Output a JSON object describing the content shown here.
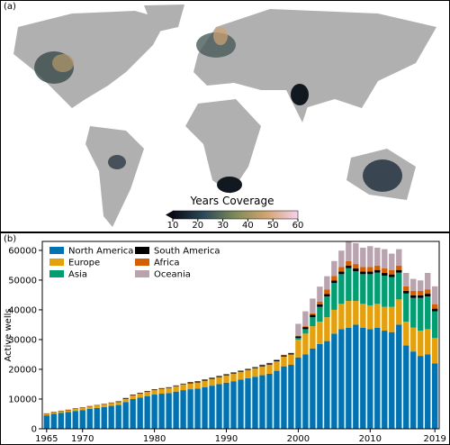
{
  "map": {
    "label": "(a)",
    "colorbar": {
      "title": "Years Coverage",
      "lim": [
        10,
        60
      ],
      "ticks": [
        10,
        20,
        30,
        40,
        50,
        60
      ]
    }
  },
  "chart_data": {
    "type": "stacked-bar",
    "panel_label": "(b)",
    "y_label": "Active wells",
    "x": [
      1965,
      1966,
      1967,
      1968,
      1969,
      1970,
      1971,
      1972,
      1973,
      1974,
      1975,
      1976,
      1977,
      1978,
      1979,
      1980,
      1981,
      1982,
      1983,
      1984,
      1985,
      1986,
      1987,
      1988,
      1989,
      1990,
      1991,
      1992,
      1993,
      1994,
      1995,
      1996,
      1997,
      1998,
      1999,
      2000,
      2001,
      2002,
      2003,
      2004,
      2005,
      2006,
      2007,
      2008,
      2009,
      2010,
      2011,
      2012,
      2013,
      2014,
      2015,
      2016,
      2017,
      2018,
      2019
    ],
    "xlim": [
      1964.4,
      2019.6
    ],
    "xticks": [
      1965,
      1970,
      1980,
      1990,
      2000,
      2010,
      2019
    ],
    "ylim": [
      0,
      63000
    ],
    "yticks": [
      0,
      10000,
      20000,
      30000,
      40000,
      50000,
      60000
    ],
    "legend": "upper-left",
    "series": [
      {
        "name": "North America",
        "color": "#0173b2",
        "values": [
          4500,
          5000,
          5300,
          5600,
          6000,
          6300,
          6700,
          7000,
          7300,
          7700,
          8000,
          9000,
          10000,
          10500,
          11000,
          11500,
          11800,
          12000,
          12500,
          13000,
          13300,
          13500,
          14000,
          14500,
          15000,
          15500,
          16000,
          16500,
          17000,
          17500,
          18000,
          18500,
          19500,
          21000,
          21500,
          24000,
          25000,
          27000,
          28500,
          29500,
          32000,
          33500,
          34000,
          35000,
          34000,
          33500,
          34000,
          33000,
          32500,
          35000,
          28000,
          26000,
          24500,
          25000,
          22000
        ]
      },
      {
        "name": "Europe",
        "color": "#e5a00d",
        "values": [
          500,
          550,
          600,
          650,
          700,
          750,
          800,
          850,
          900,
          950,
          1000,
          1100,
          1200,
          1300,
          1400,
          1500,
          1600,
          1700,
          1800,
          1900,
          2000,
          2100,
          2200,
          2300,
          2400,
          2500,
          2600,
          2700,
          2800,
          2900,
          3000,
          3100,
          3200,
          3300,
          3500,
          6000,
          7000,
          7500,
          7500,
          8000,
          8000,
          8500,
          9000,
          8000,
          8000,
          8000,
          8000,
          8000,
          8500,
          8500,
          8000,
          8000,
          8500,
          8500,
          8500
        ]
      },
      {
        "name": "Asia",
        "color": "#029e73",
        "values": [
          0,
          0,
          0,
          0,
          0,
          0,
          0,
          0,
          0,
          0,
          0,
          0,
          0,
          0,
          0,
          0,
          0,
          0,
          0,
          0,
          0,
          0,
          0,
          0,
          0,
          0,
          0,
          0,
          0,
          0,
          0,
          0,
          0,
          0,
          0,
          500,
          1500,
          3000,
          5000,
          7000,
          9000,
          10000,
          11000,
          10000,
          10000,
          10500,
          10500,
          10500,
          10000,
          9000,
          9500,
          10000,
          11000,
          11000,
          9000
        ]
      },
      {
        "name": "South America",
        "color": "#000000",
        "values": [
          100,
          100,
          100,
          100,
          100,
          100,
          100,
          100,
          100,
          100,
          200,
          200,
          200,
          200,
          200,
          200,
          200,
          200,
          200,
          200,
          300,
          300,
          300,
          300,
          300,
          300,
          300,
          300,
          300,
          300,
          400,
          400,
          400,
          400,
          400,
          600,
          700,
          800,
          800,
          800,
          900,
          900,
          900,
          900,
          900,
          900,
          900,
          900,
          900,
          900,
          900,
          900,
          900,
          900,
          900
        ]
      },
      {
        "name": "Africa",
        "color": "#d55e00",
        "values": [
          100,
          100,
          100,
          100,
          100,
          100,
          100,
          100,
          100,
          100,
          100,
          100,
          100,
          100,
          100,
          100,
          100,
          100,
          100,
          100,
          100,
          100,
          100,
          100,
          100,
          100,
          100,
          100,
          100,
          100,
          100,
          100,
          100,
          100,
          100,
          200,
          300,
          500,
          1000,
          1500,
          1500,
          1500,
          1500,
          1500,
          1500,
          1500,
          1500,
          1500,
          1500,
          1500,
          1500,
          1500,
          1500,
          1500,
          1500
        ]
      },
      {
        "name": "Oceania",
        "color": "#b9a3ae",
        "values": [
          0,
          0,
          0,
          0,
          0,
          0,
          0,
          0,
          0,
          0,
          0,
          0,
          0,
          0,
          0,
          0,
          0,
          0,
          0,
          0,
          0,
          0,
          0,
          0,
          0,
          0,
          0,
          0,
          0,
          0,
          100,
          100,
          100,
          100,
          100,
          4000,
          5000,
          5000,
          5000,
          4500,
          5000,
          5500,
          6500,
          7000,
          6500,
          7000,
          6000,
          6500,
          5500,
          5500,
          4500,
          4000,
          3500,
          5500,
          6000
        ]
      }
    ]
  }
}
